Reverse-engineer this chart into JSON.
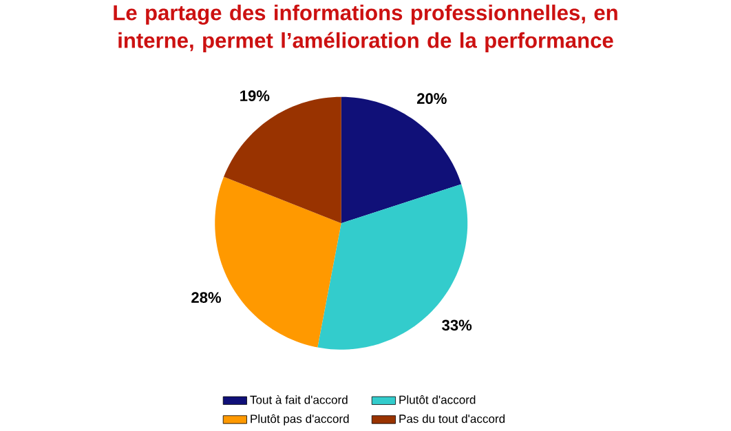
{
  "chart_data": {
    "type": "pie",
    "title": "Le partage des informations professionnelles, en interne, permet l’amélioration de la performance",
    "categories": [
      "Tout à fait d'accord",
      "Plutôt d'accord",
      "Plutôt pas d'accord",
      "Pas du tout d'accord"
    ],
    "values": [
      20,
      33,
      28,
      19
    ],
    "colors": [
      "#101078",
      "#33cccc",
      "#ff9900",
      "#993300"
    ],
    "value_labels": [
      "20%",
      "33%",
      "28%",
      "19%"
    ],
    "legend": "bottom"
  }
}
